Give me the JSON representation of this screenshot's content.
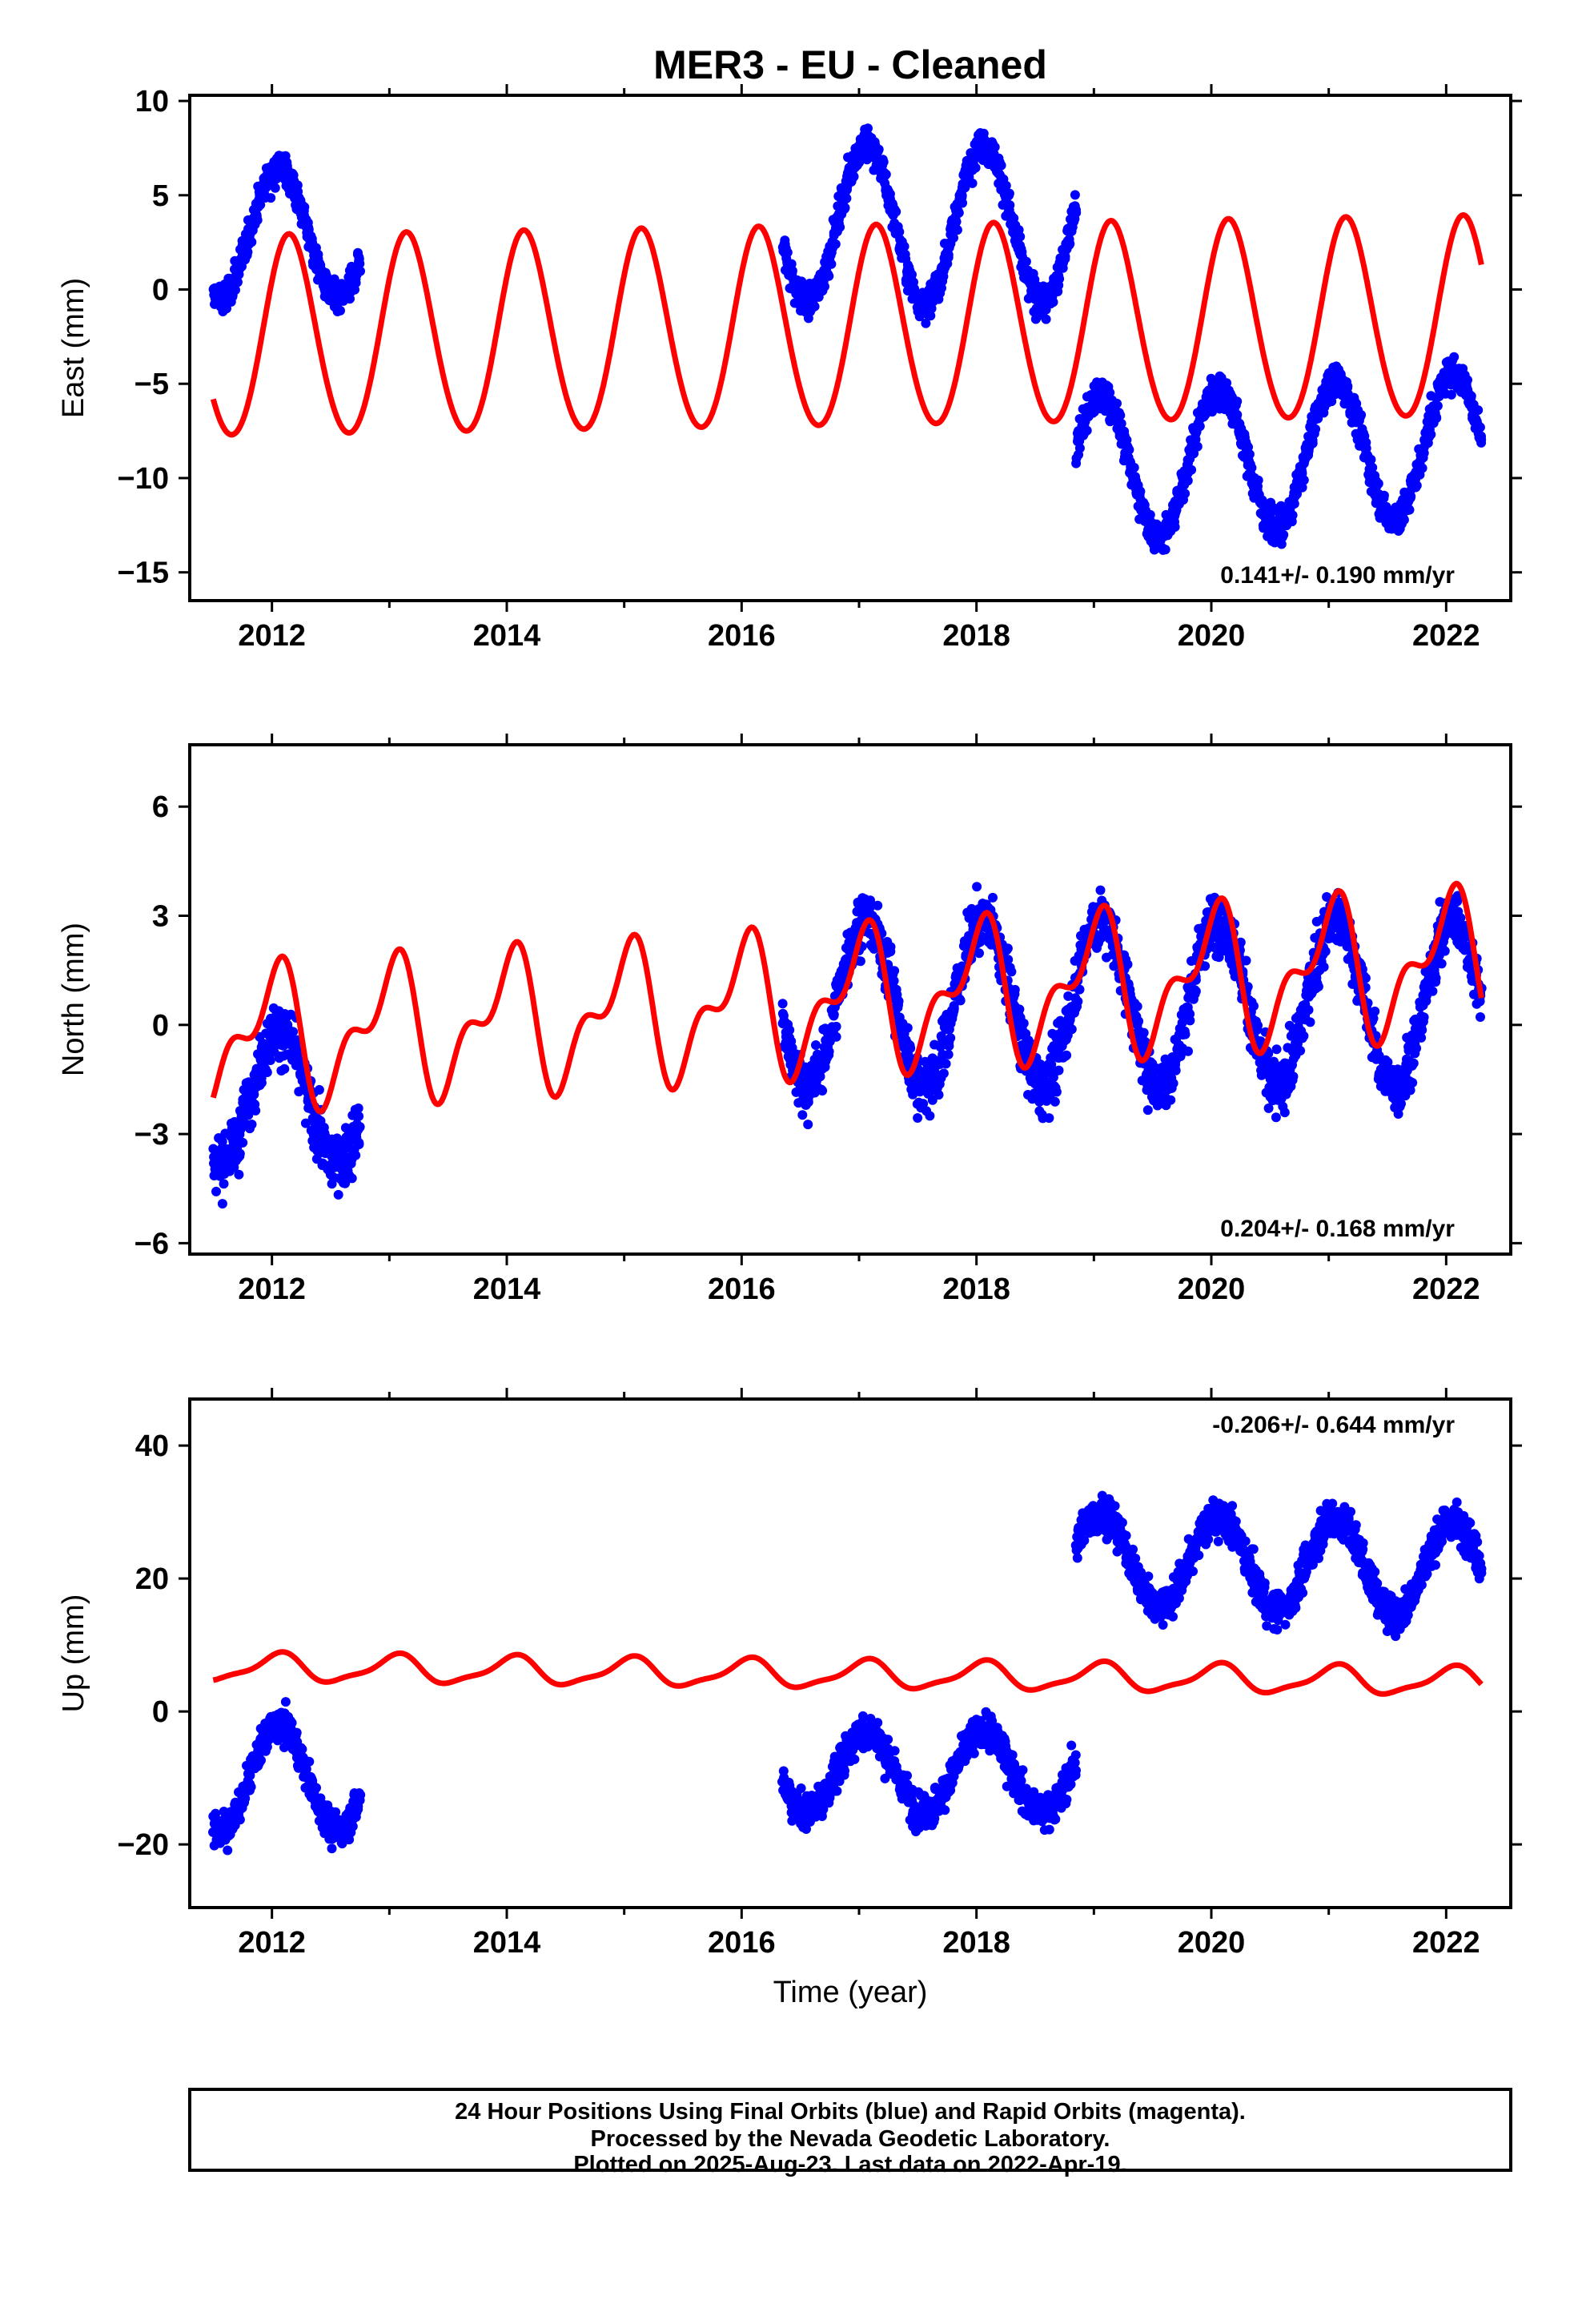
{
  "chart_data": {
    "type": "scatter",
    "title": "MER3  - EU - Cleaned",
    "xlabel": "Time (year)",
    "xlim": [
      2011.3,
      2022.55
    ],
    "x_ticks": [
      "2012",
      "2014",
      "2016",
      "2018",
      "2020",
      "2022"
    ],
    "colors": {
      "data": "#0000ff",
      "model": "#ff0000",
      "frame": "#000000"
    },
    "panels": [
      {
        "id": "east",
        "ylabel": "East (mm)",
        "ylim": [
          -16.5,
          10.3
        ],
        "y_ticks": [
          "10",
          "5",
          "0",
          "−5",
          "−10",
          "−15"
        ],
        "y_tick_values": [
          10,
          5,
          0,
          -5,
          -10,
          -15
        ],
        "rate_text": "0.141+/- 0.190 mm/yr",
        "rate_position": "bottom-right",
        "data_segments": [
          {
            "x0": 2011.5,
            "x1": 2012.75,
            "offset": 3.0,
            "amp": 3.5,
            "trend": 0.0,
            "noise": 1.1,
            "n": 420
          },
          {
            "x0": 2016.35,
            "x1": 2018.85,
            "offset": 3.5,
            "amp": 4.2,
            "trend": 0.0,
            "noise": 1.1,
            "n": 800
          },
          {
            "x0": 2018.85,
            "x1": 2022.3,
            "offset": -9.5,
            "amp": 3.8,
            "trend": 0.4,
            "noise": 1.1,
            "n": 1100
          }
        ],
        "model": {
          "offset": -2.7,
          "amp1": 5.3,
          "amp2": 0.3,
          "trend": 0.1,
          "phase": 0.1
        }
      },
      {
        "id": "north",
        "ylabel": "North (mm)",
        "ylim": [
          -6.3,
          7.7
        ],
        "y_ticks": [
          "6",
          "3",
          "0",
          "−3",
          "−6"
        ],
        "y_tick_values": [
          6,
          3,
          0,
          -3,
          -6
        ],
        "rate_text": "0.204+/- 0.168 mm/yr",
        "rate_position": "bottom-right",
        "data_segments": [
          {
            "x0": 2011.5,
            "x1": 2012.75,
            "offset": -2.0,
            "amp": 1.8,
            "trend": 0.0,
            "noise": 1.0,
            "n": 420
          },
          {
            "x0": 2016.35,
            "x1": 2022.3,
            "offset": 0.6,
            "amp": 2.3,
            "trend": 0.0,
            "noise": 1.0,
            "n": 1900
          }
        ],
        "model": {
          "offset": -0.4,
          "amp1": 1.6,
          "amp2": 0.9,
          "trend": 0.2,
          "phase": 0.25
        }
      },
      {
        "id": "up",
        "ylabel": "Up (mm)",
        "ylim": [
          -29.5,
          47
        ],
        "y_ticks": [
          "40",
          "20",
          "0",
          "−20"
        ],
        "y_tick_values": [
          40,
          20,
          0,
          -20
        ],
        "rate_text": "-0.206+/- 0.644 mm/yr",
        "rate_position": "top-right",
        "data_segments": [
          {
            "x0": 2011.5,
            "x1": 2012.75,
            "offset": -10.0,
            "amp": 8.0,
            "trend": 0.0,
            "noise": 3.0,
            "n": 420
          },
          {
            "x0": 2016.35,
            "x1": 2018.85,
            "offset": -9.0,
            "amp": 6.0,
            "trend": 0.0,
            "noise": 3.5,
            "n": 800
          },
          {
            "x0": 2018.85,
            "x1": 2022.3,
            "offset": 23.0,
            "amp": 7.0,
            "trend": -0.5,
            "noise": 3.5,
            "n": 1100
          }
        ],
        "model": {
          "offset": 6.6,
          "amp1": 2.0,
          "amp2": 0.6,
          "trend": -0.2,
          "phase": 0.2
        }
      }
    ]
  },
  "footer": {
    "line1": "24 Hour Positions Using Final Orbits (blue) and Rapid Orbits (magenta).",
    "line2": "Processed by the Nevada Geodetic Laboratory.",
    "line3": "Plotted on 2025-Aug-23. Last data on 2022-Apr-19."
  }
}
